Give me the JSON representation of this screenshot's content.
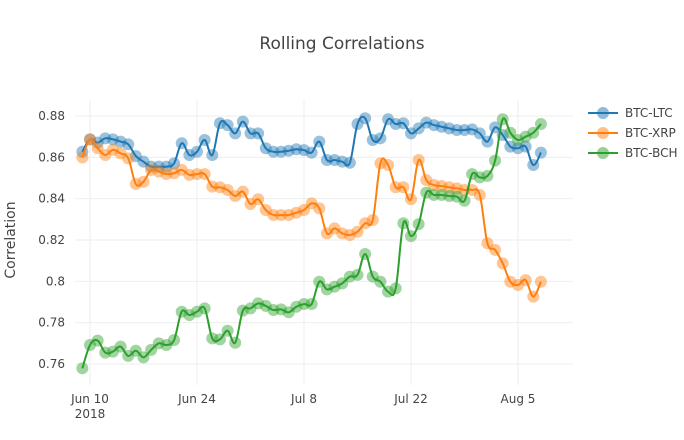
{
  "chart_data": {
    "type": "line",
    "title": "Rolling Correlations",
    "xlabel": "",
    "ylabel": "Correlation",
    "ylim": [
      0.752,
      0.888
    ],
    "xlim": [
      "2018-06-08",
      "2018-08-11"
    ],
    "grid": true,
    "legend_position": "right",
    "y_ticks": [
      0.76,
      0.78,
      0.8,
      0.82,
      0.84,
      0.86,
      0.88
    ],
    "y_tick_labels": [
      "0.76",
      "0.78",
      "0.8",
      "0.82",
      "0.84",
      "0.86",
      "0.88"
    ],
    "x_ticks": [
      "2018-06-10",
      "2018-06-24",
      "2018-07-08",
      "2018-07-22",
      "2018-08-05"
    ],
    "x_tick_labels": [
      "Jun 10",
      "Jun 24",
      "Jul 8",
      "Jul 22",
      "Aug 5"
    ],
    "x_tick_sublabel": "2018",
    "x": [
      "2018-06-09",
      "2018-06-10",
      "2018-06-11",
      "2018-06-12",
      "2018-06-13",
      "2018-06-14",
      "2018-06-15",
      "2018-06-16",
      "2018-06-17",
      "2018-06-18",
      "2018-06-19",
      "2018-06-20",
      "2018-06-21",
      "2018-06-22",
      "2018-06-23",
      "2018-06-24",
      "2018-06-25",
      "2018-06-26",
      "2018-06-27",
      "2018-06-28",
      "2018-06-29",
      "2018-06-30",
      "2018-07-01",
      "2018-07-02",
      "2018-07-03",
      "2018-07-04",
      "2018-07-05",
      "2018-07-06",
      "2018-07-07",
      "2018-07-08",
      "2018-07-09",
      "2018-07-10",
      "2018-07-11",
      "2018-07-12",
      "2018-07-13",
      "2018-07-14",
      "2018-07-15",
      "2018-07-16",
      "2018-07-17",
      "2018-07-18",
      "2018-07-19",
      "2018-07-20",
      "2018-07-21",
      "2018-07-22",
      "2018-07-23",
      "2018-07-24",
      "2018-07-25",
      "2018-07-26",
      "2018-07-27",
      "2018-07-28",
      "2018-07-29",
      "2018-07-30",
      "2018-07-31",
      "2018-08-01",
      "2018-08-02",
      "2018-08-03",
      "2018-08-04",
      "2018-08-05",
      "2018-08-06",
      "2018-08-07",
      "2018-08-08"
    ],
    "series": [
      {
        "name": "BTC-LTC",
        "color": "#1f77b4",
        "values": [
          0.8627,
          0.8687,
          0.8671,
          0.8692,
          0.8687,
          0.8676,
          0.8663,
          0.8606,
          0.8579,
          0.8555,
          0.8555,
          0.8555,
          0.8571,
          0.8668,
          0.8611,
          0.8627,
          0.8684,
          0.8611,
          0.8765,
          0.8756,
          0.8716,
          0.8773,
          0.8716,
          0.8716,
          0.8644,
          0.8627,
          0.8627,
          0.8632,
          0.8639,
          0.8635,
          0.8623,
          0.8676,
          0.8587,
          0.8587,
          0.8579,
          0.8574,
          0.8761,
          0.8789,
          0.8684,
          0.8692,
          0.8784,
          0.8761,
          0.8765,
          0.8716,
          0.874,
          0.8768,
          0.8756,
          0.8748,
          0.874,
          0.8732,
          0.8732,
          0.8735,
          0.8716,
          0.8676,
          0.8745,
          0.8708,
          0.8652,
          0.8644,
          0.8652,
          0.8563,
          0.8623
        ]
      },
      {
        "name": "BTC-XRP",
        "color": "#ff7f0e",
        "values": [
          0.86,
          0.8687,
          0.8644,
          0.8611,
          0.8636,
          0.8619,
          0.8595,
          0.8471,
          0.8482,
          0.8539,
          0.8531,
          0.8519,
          0.8523,
          0.8539,
          0.8515,
          0.8519,
          0.8519,
          0.8458,
          0.8455,
          0.8442,
          0.8413,
          0.8434,
          0.8374,
          0.8397,
          0.8345,
          0.8321,
          0.8321,
          0.8321,
          0.8332,
          0.8345,
          0.8377,
          0.8353,
          0.8232,
          0.8256,
          0.8232,
          0.8224,
          0.824,
          0.8281,
          0.8297,
          0.8571,
          0.8563,
          0.8455,
          0.8455,
          0.8397,
          0.8587,
          0.849,
          0.8466,
          0.8461,
          0.8455,
          0.845,
          0.8442,
          0.8442,
          0.8418,
          0.8184,
          0.8152,
          0.8087,
          0.7998,
          0.7982,
          0.8006,
          0.7926,
          0.7998
        ]
      },
      {
        "name": "BTC-BCH",
        "color": "#2ca02c",
        "values": [
          0.7579,
          0.7692,
          0.7713,
          0.7655,
          0.766,
          0.7684,
          0.7639,
          0.7664,
          0.7632,
          0.7668,
          0.77,
          0.7692,
          0.7716,
          0.7853,
          0.7837,
          0.7853,
          0.7869,
          0.7724,
          0.7719,
          0.7761,
          0.7703,
          0.7858,
          0.7869,
          0.7893,
          0.7881,
          0.7861,
          0.7864,
          0.785,
          0.7877,
          0.789,
          0.789,
          0.7998,
          0.7961,
          0.7974,
          0.799,
          0.8023,
          0.8031,
          0.8132,
          0.8023,
          0.7998,
          0.795,
          0.7966,
          0.8281,
          0.8219,
          0.8277,
          0.8429,
          0.8418,
          0.8418,
          0.8413,
          0.841,
          0.839,
          0.8519,
          0.8503,
          0.851,
          0.8584,
          0.8784,
          0.8719,
          0.8684,
          0.87,
          0.8719,
          0.8761
        ]
      }
    ]
  }
}
